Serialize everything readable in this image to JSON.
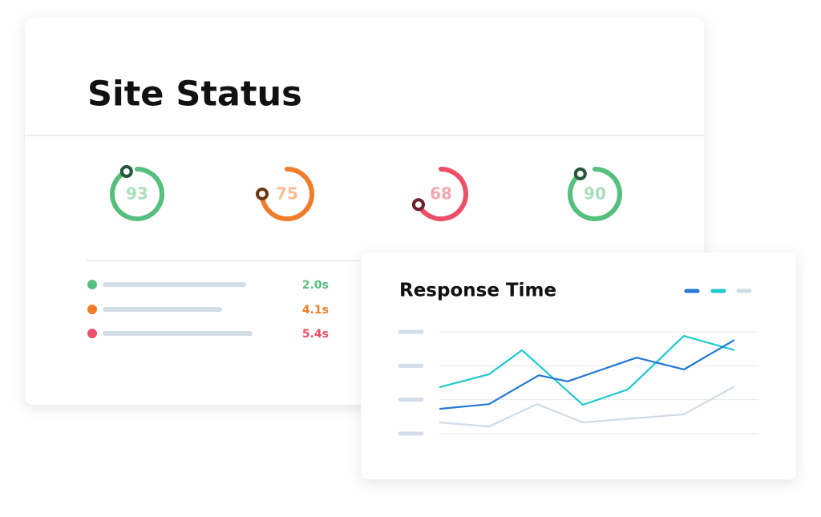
{
  "header": {
    "title": "Site Status"
  },
  "gauges": [
    {
      "value": 93,
      "color": "#55bf7d"
    },
    {
      "value": 75,
      "color": "#f07d2a"
    },
    {
      "value": 68,
      "color": "#ec5068"
    },
    {
      "value": 90,
      "color": "#55bf7d"
    }
  ],
  "metrics": [
    {
      "value": "2.0s",
      "color": "#55bf7d"
    },
    {
      "value": "4.1s",
      "color": "#f07d2a"
    },
    {
      "value": "5.4s",
      "color": "#ec5068"
    }
  ],
  "chart_data": {
    "type": "line",
    "title": "Response Time",
    "xlim": [
      0,
      368
    ],
    "ylim": [
      0,
      3
    ],
    "yticks": [
      0,
      1,
      2,
      3
    ],
    "grid": true,
    "series": [
      {
        "color": "#2478d4",
        "x": [
          0,
          62,
          124,
          160,
          246,
          305,
          368
        ],
        "values": [
          0.73,
          0.87,
          1.72,
          1.54,
          2.24,
          1.89,
          2.76
        ]
      },
      {
        "color": "#1fc8d0",
        "x": [
          0,
          62,
          103,
          179,
          235,
          305,
          368
        ],
        "values": [
          1.37,
          1.75,
          2.46,
          0.85,
          1.3,
          2.88,
          2.46
        ]
      },
      {
        "color": "#d0dbe6",
        "x": [
          0,
          62,
          122,
          179,
          305,
          368
        ],
        "values": [
          0.33,
          0.21,
          0.87,
          0.33,
          0.57,
          1.39
        ]
      }
    ]
  }
}
